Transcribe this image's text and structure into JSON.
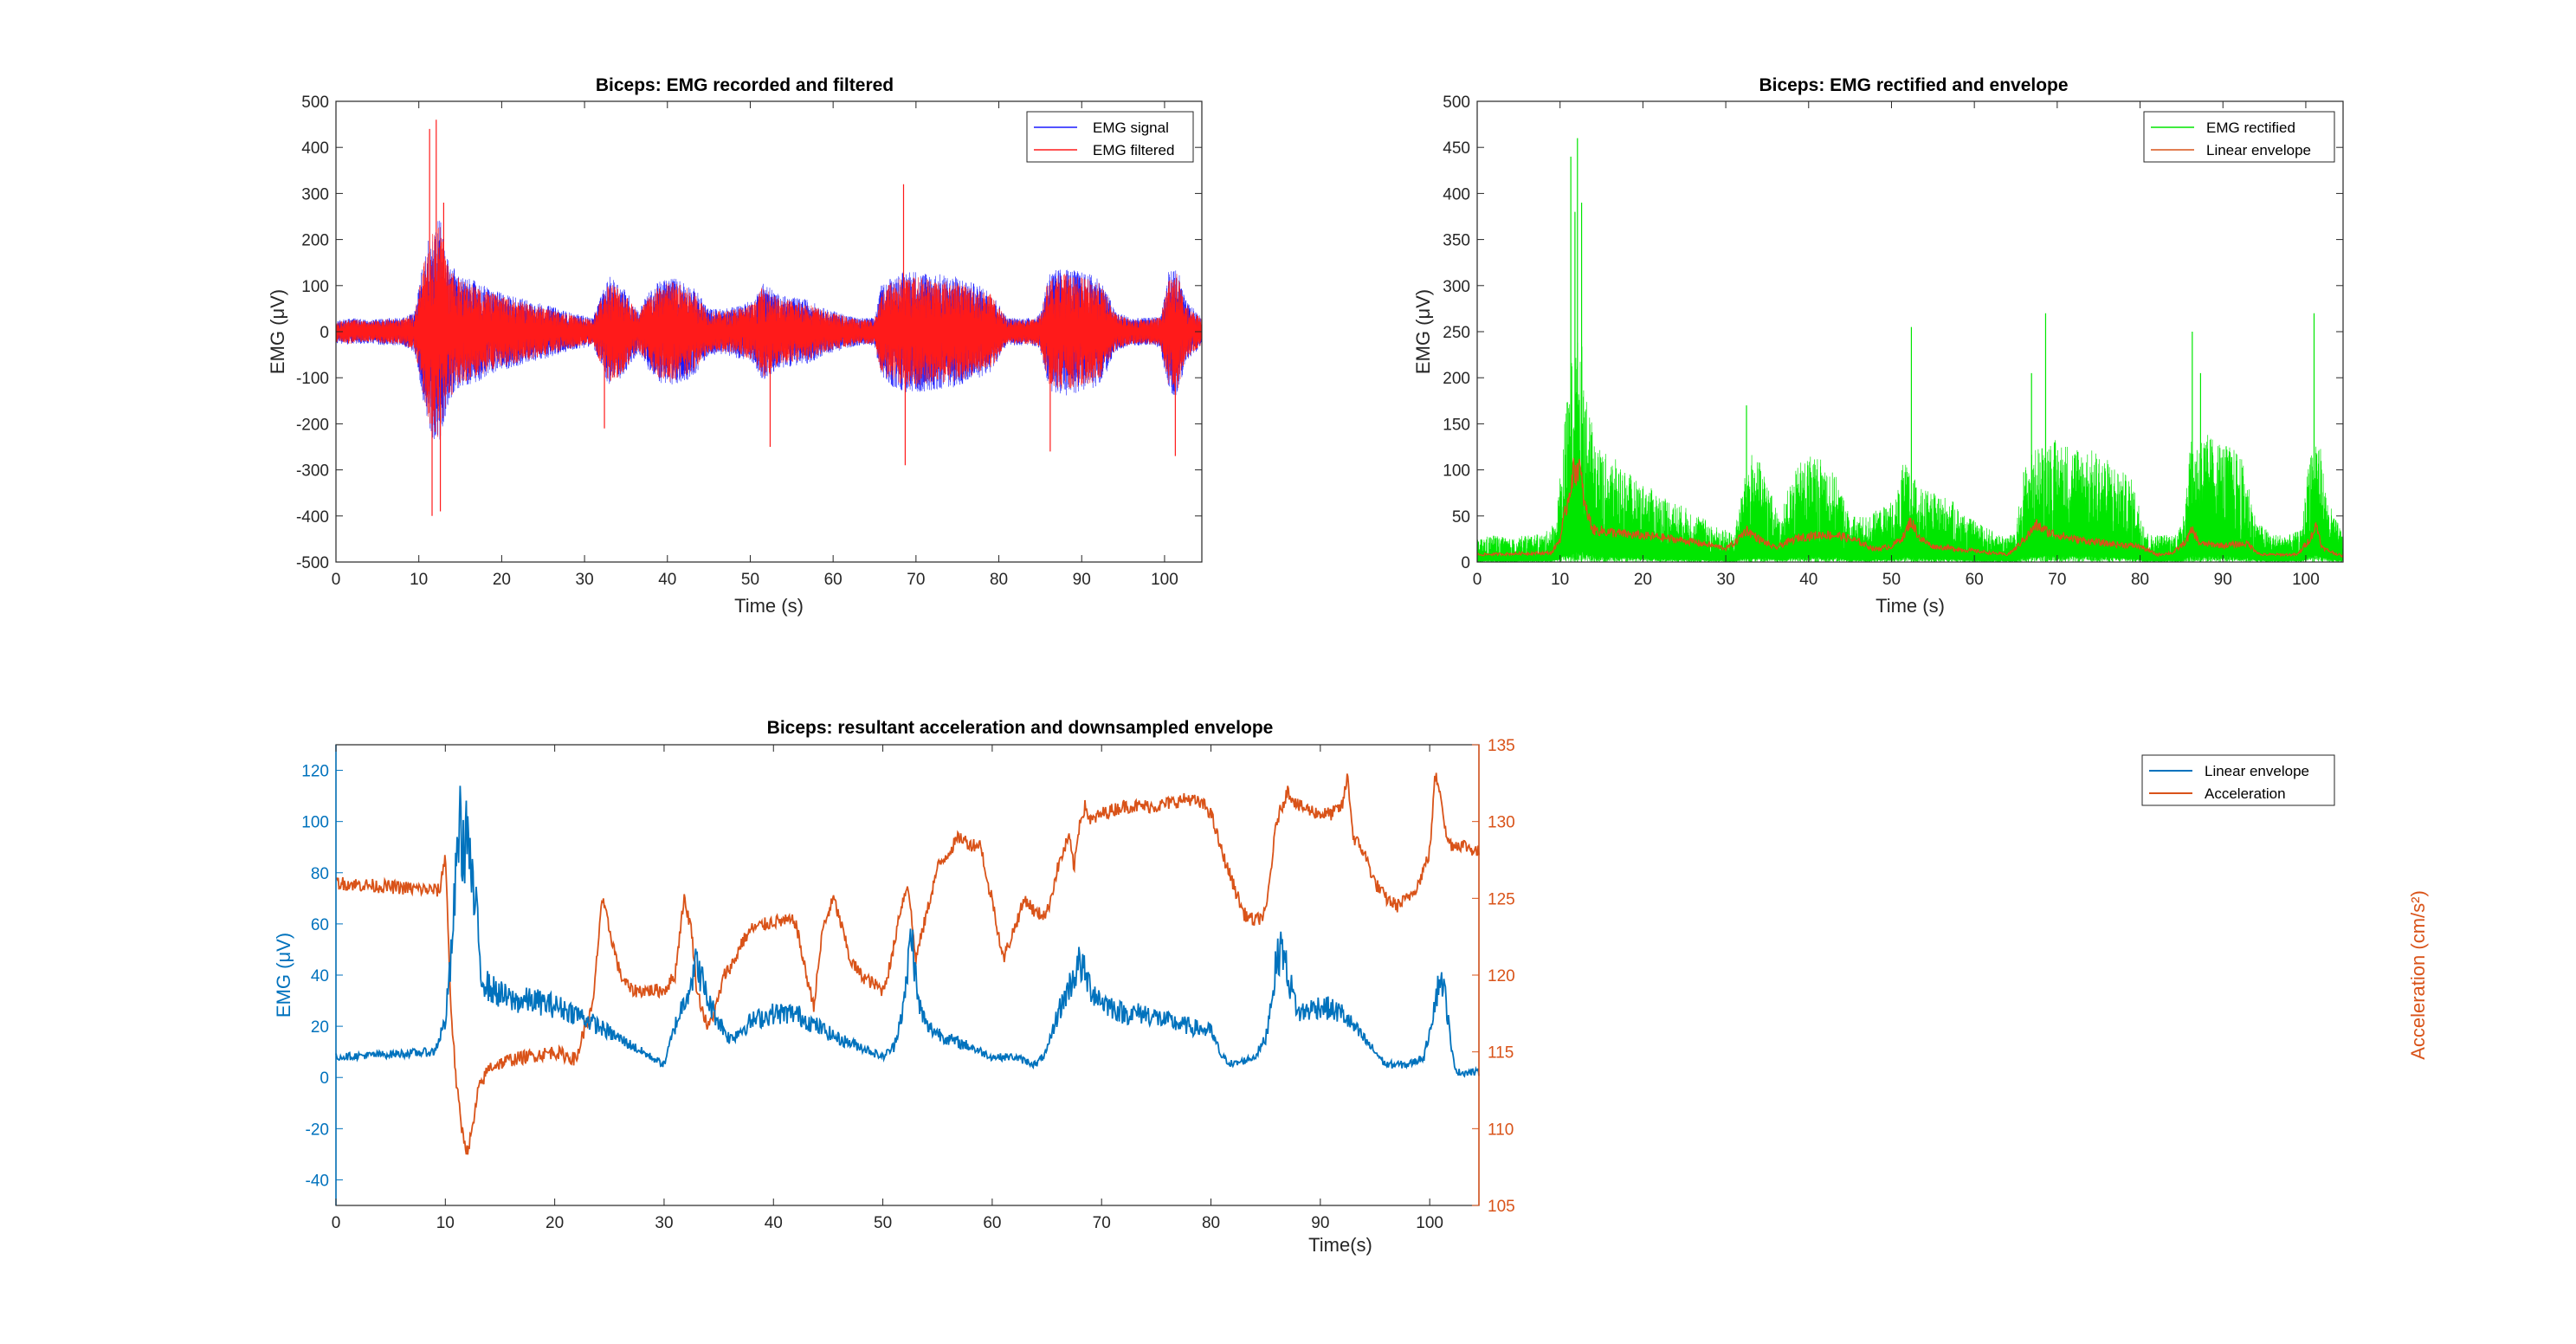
{
  "chart_data": [
    {
      "type": "line",
      "title": "Biceps: EMG recorded and filtered",
      "xlabel": "Time (s)",
      "ylabel": "EMG (μV)",
      "xlim": [
        0,
        104.5
      ],
      "ylim": [
        -500,
        500
      ],
      "xticks": [
        0,
        10,
        20,
        30,
        40,
        50,
        60,
        70,
        80,
        90,
        100
      ],
      "yticks": [
        -500,
        -400,
        -300,
        -200,
        -100,
        0,
        100,
        200,
        300,
        400,
        500
      ],
      "legend_location": "top-right",
      "series": [
        {
          "name": "EMG signal",
          "color": "#1a1aff",
          "style": "noise-band",
          "x": [
            0,
            2,
            4,
            6,
            8,
            9.5,
            10.5,
            11.5,
            12.5,
            13.5,
            15,
            17,
            19,
            21,
            23,
            25,
            27,
            28.5,
            30,
            31,
            32,
            33,
            34,
            35,
            36.5,
            37.5,
            39,
            40.5,
            42,
            43.5,
            45,
            47,
            49,
            50.5,
            51.5,
            52.5,
            53.5,
            55,
            57,
            59,
            61,
            63,
            65,
            65.8,
            67,
            69,
            71,
            73,
            75,
            77,
            79,
            80,
            81,
            82,
            84,
            85,
            86,
            88,
            90,
            92,
            93,
            94,
            96,
            98,
            99.5,
            100.5,
            101.5,
            102.5,
            104.5
          ],
          "amp": [
            25,
            30,
            25,
            30,
            30,
            45,
            150,
            230,
            250,
            160,
            120,
            110,
            90,
            80,
            70,
            60,
            50,
            40,
            35,
            30,
            80,
            120,
            110,
            90,
            45,
            80,
            110,
            120,
            110,
            90,
            50,
            50,
            60,
            70,
            110,
            95,
            80,
            75,
            70,
            50,
            40,
            30,
            30,
            100,
            120,
            135,
            130,
            125,
            120,
            105,
            90,
            60,
            30,
            30,
            30,
            40,
            130,
            140,
            130,
            120,
            90,
            45,
            30,
            30,
            35,
            130,
            145,
            70,
            30
          ]
        },
        {
          "name": "EMG filtered",
          "color": "#ff1a1a",
          "style": "noise-band",
          "x": [
            0,
            2,
            4,
            6,
            8,
            9.5,
            10.5,
            11.5,
            12.5,
            13.5,
            15,
            17,
            19,
            21,
            23,
            25,
            27,
            28.5,
            30,
            31,
            32,
            33,
            34,
            35,
            36.5,
            37.5,
            39,
            40.5,
            42,
            43.5,
            45,
            47,
            49,
            50.5,
            51.5,
            52.5,
            53.5,
            55,
            57,
            59,
            61,
            63,
            65,
            65.8,
            67,
            69,
            71,
            73,
            75,
            77,
            79,
            80,
            81,
            82,
            84,
            85,
            86,
            88,
            90,
            92,
            93,
            94,
            96,
            98,
            99.5,
            100.5,
            101.5,
            102.5,
            104.5
          ],
          "amp": [
            22,
            27,
            22,
            27,
            27,
            40,
            140,
            215,
            235,
            150,
            112,
            100,
            82,
            72,
            62,
            54,
            44,
            36,
            30,
            27,
            72,
            110,
            100,
            82,
            40,
            72,
            100,
            110,
            100,
            82,
            45,
            45,
            54,
            62,
            100,
            86,
            72,
            68,
            62,
            45,
            36,
            27,
            27,
            90,
            110,
            122,
            118,
            112,
            108,
            95,
            82,
            54,
            27,
            27,
            27,
            36,
            118,
            126,
            118,
            108,
            82,
            40,
            27,
            27,
            32,
            118,
            130,
            62,
            27
          ]
        }
      ],
      "spikes": [
        {
          "x": 11.3,
          "value": 440
        },
        {
          "x": 11.6,
          "value": -400
        },
        {
          "x": 12.1,
          "value": 460
        },
        {
          "x": 12.6,
          "value": -390
        },
        {
          "x": 13.0,
          "value": 280
        },
        {
          "x": 32.4,
          "value": -210
        },
        {
          "x": 52.4,
          "value": -250
        },
        {
          "x": 68.5,
          "value": 320
        },
        {
          "x": 68.7,
          "value": -290
        },
        {
          "x": 86.2,
          "value": -260
        },
        {
          "x": 101.3,
          "value": -270
        }
      ]
    },
    {
      "type": "line",
      "title": "Biceps: EMG rectified and envelope",
      "xlabel": "Time (s)",
      "ylabel": "EMG (μV)",
      "xlim": [
        0,
        104.5
      ],
      "ylim": [
        0,
        500
      ],
      "xticks": [
        0,
        10,
        20,
        30,
        40,
        50,
        60,
        70,
        80,
        90,
        100
      ],
      "yticks": [
        0,
        50,
        100,
        150,
        200,
        250,
        300,
        350,
        400,
        450,
        500
      ],
      "legend_location": "top-right",
      "series": [
        {
          "name": "EMG rectified",
          "color": "#00e600",
          "style": "noise-fill",
          "x": [
            0,
            2,
            4,
            6,
            8,
            9.5,
            10.5,
            11.5,
            12.5,
            13.5,
            15,
            17,
            19,
            21,
            23,
            25,
            27,
            28.5,
            30,
            31,
            32,
            33,
            34,
            35,
            36.5,
            37.5,
            39,
            40.5,
            42,
            43.5,
            45,
            47,
            49,
            50.5,
            51.5,
            52.5,
            53.5,
            55,
            57,
            59,
            61,
            63,
            65,
            65.8,
            67,
            69,
            71,
            73,
            75,
            77,
            79,
            80,
            81,
            82,
            84,
            85,
            86,
            88,
            90,
            92,
            93,
            94,
            96,
            98,
            99.5,
            100.5,
            101.5,
            102.5,
            104.5
          ],
          "amp": [
            25,
            30,
            25,
            30,
            30,
            45,
            150,
            230,
            250,
            160,
            120,
            110,
            90,
            80,
            70,
            60,
            50,
            40,
            35,
            30,
            80,
            120,
            110,
            90,
            45,
            80,
            110,
            120,
            110,
            90,
            50,
            50,
            60,
            70,
            110,
            95,
            80,
            75,
            70,
            50,
            40,
            30,
            30,
            100,
            120,
            135,
            130,
            125,
            120,
            105,
            90,
            60,
            30,
            30,
            30,
            40,
            130,
            140,
            130,
            120,
            90,
            45,
            30,
            30,
            35,
            130,
            145,
            70,
            30
          ]
        },
        {
          "name": "Linear envelope",
          "color": "#d95319",
          "style": "line",
          "x": [
            0,
            9,
            10,
            11,
            11.5,
            12.3,
            13,
            14,
            18,
            22,
            26,
            30,
            31,
            32.5,
            34,
            36,
            37,
            39,
            42,
            44,
            46,
            48,
            50,
            51.5,
            52.3,
            53.5,
            55,
            60,
            64,
            65,
            66.5,
            67.5,
            69,
            72,
            76,
            80,
            82,
            84,
            85.5,
            86.3,
            87.2,
            90,
            93,
            94.5,
            99,
            100.5,
            101.3,
            102,
            104.5
          ],
          "values": [
            8,
            10,
            25,
            70,
            95,
            105,
            60,
            35,
            30,
            27,
            22,
            15,
            20,
            35,
            25,
            15,
            20,
            27,
            30,
            28,
            22,
            14,
            17,
            28,
            45,
            25,
            17,
            12,
            8,
            15,
            30,
            40,
            32,
            25,
            20,
            17,
            8,
            10,
            22,
            35,
            20,
            18,
            20,
            8,
            8,
            25,
            40,
            15,
            6
          ]
        }
      ],
      "spikes": [
        {
          "x": 11.3,
          "value": 440
        },
        {
          "x": 11.8,
          "value": 380
        },
        {
          "x": 12.1,
          "value": 460
        },
        {
          "x": 12.6,
          "value": 390
        },
        {
          "x": 32.5,
          "value": 170
        },
        {
          "x": 52.4,
          "value": 255
        },
        {
          "x": 66.9,
          "value": 205
        },
        {
          "x": 68.6,
          "value": 270
        },
        {
          "x": 86.3,
          "value": 250
        },
        {
          "x": 87.3,
          "value": 205
        },
        {
          "x": 101.0,
          "value": 270
        }
      ]
    },
    {
      "type": "line",
      "title": "Biceps: resultant acceleration and downsampled envelope",
      "xlabel": "Time(s)",
      "ylabel": "EMG (μV)",
      "ylabel_right": "Acceleration (cm/s²)",
      "xlim": [
        0,
        104.5
      ],
      "ylim": [
        -50,
        130
      ],
      "ylim_right": [
        105,
        135
      ],
      "xticks": [
        0,
        10,
        20,
        30,
        40,
        50,
        60,
        70,
        80,
        90,
        100
      ],
      "yticks": [
        -40,
        -20,
        0,
        20,
        40,
        60,
        80,
        100,
        120
      ],
      "yticks_right": [
        105,
        110,
        115,
        120,
        125,
        130,
        135
      ],
      "legend_location": "top-right",
      "series": [
        {
          "name": "Linear envelope",
          "color": "#0072bd",
          "axis": "left",
          "x": [
            0,
            9,
            10,
            10.5,
            11,
            11.3,
            11.6,
            12,
            12.4,
            12.8,
            13.3,
            14,
            16,
            18,
            20,
            22,
            24,
            26,
            28,
            30,
            31,
            32,
            33,
            34,
            35,
            36,
            38,
            40,
            42,
            44,
            46,
            48,
            50,
            51,
            52,
            52.6,
            53.2,
            54,
            56,
            58,
            60,
            62,
            64,
            65,
            66,
            67,
            68,
            69,
            70,
            72,
            74,
            76,
            78,
            80,
            81,
            82,
            84,
            85,
            85.5,
            86,
            86.5,
            87,
            88,
            90,
            92,
            93,
            94,
            96,
            98,
            99.5,
            100.5,
            101,
            101.5,
            102,
            102.5,
            104.5
          ],
          "values": [
            8,
            10,
            22,
            45,
            80,
            105,
            85,
            100,
            75,
            65,
            40,
            35,
            30,
            30,
            28,
            25,
            20,
            15,
            10,
            5,
            20,
            32,
            45,
            30,
            22,
            15,
            22,
            25,
            25,
            20,
            15,
            12,
            8,
            12,
            30,
            58,
            30,
            20,
            15,
            12,
            8,
            8,
            5,
            10,
            25,
            35,
            45,
            35,
            30,
            25,
            25,
            22,
            20,
            18,
            8,
            5,
            8,
            15,
            30,
            45,
            52,
            40,
            25,
            28,
            25,
            20,
            15,
            5,
            5,
            8,
            30,
            40,
            30,
            10,
            2,
            2
          ]
        },
        {
          "name": "Acceleration",
          "color": "#d95319",
          "axis": "right",
          "x": [
            0,
            9.5,
            10,
            10.2,
            10.5,
            11,
            11.5,
            12,
            12.5,
            13,
            14,
            16,
            20,
            22,
            22.5,
            23.5,
            24.3,
            25,
            26,
            27,
            30,
            31,
            31.8,
            32.5,
            33,
            34,
            34.8,
            35.5,
            36.5,
            37,
            38,
            40,
            42,
            43,
            43.7,
            44.5,
            45.5,
            46.3,
            47,
            48,
            50,
            50.8,
            51.5,
            52.3,
            53,
            54,
            55,
            56,
            57,
            58,
            59,
            59.5,
            60,
            61,
            62,
            63,
            64,
            65,
            66,
            67,
            67.5,
            68,
            68.5,
            69,
            70,
            72,
            75,
            78,
            79.5,
            80,
            81,
            82,
            83,
            84,
            85,
            86,
            87,
            88,
            90,
            91,
            92,
            92.5,
            93,
            94,
            95,
            96,
            97,
            98,
            99,
            100,
            100.5,
            101,
            101.5,
            102,
            103,
            104.5
          ],
          "values": [
            126,
            125.5,
            128,
            124,
            118,
            113,
            110,
            108.5,
            110,
            112.5,
            114,
            114.5,
            115,
            114.5,
            116,
            118,
            125,
            123,
            120,
            119,
            119,
            120,
            125,
            123,
            119,
            116.5,
            118,
            120,
            121,
            122,
            123,
            123.5,
            123.5,
            120,
            118,
            123,
            125,
            123,
            121,
            120,
            119,
            121,
            124,
            126,
            121,
            124,
            127,
            128,
            129,
            128.5,
            128.5,
            126,
            125,
            121,
            123,
            125,
            124,
            124,
            127,
            129,
            127,
            130,
            131,
            130,
            130.5,
            131,
            131,
            131.5,
            131,
            130.5,
            128,
            126,
            124,
            123.5,
            124,
            130,
            132,
            131,
            130.5,
            130.5,
            131,
            133,
            129,
            128,
            126,
            125,
            124.5,
            125,
            126,
            128,
            133,
            132,
            129,
            128.5,
            128.5,
            128
          ]
        }
      ]
    }
  ],
  "ui": {
    "colors": {
      "axis": "#262626",
      "right_axis": "#d95319",
      "left_axis_panel3": "#0072bd"
    }
  }
}
